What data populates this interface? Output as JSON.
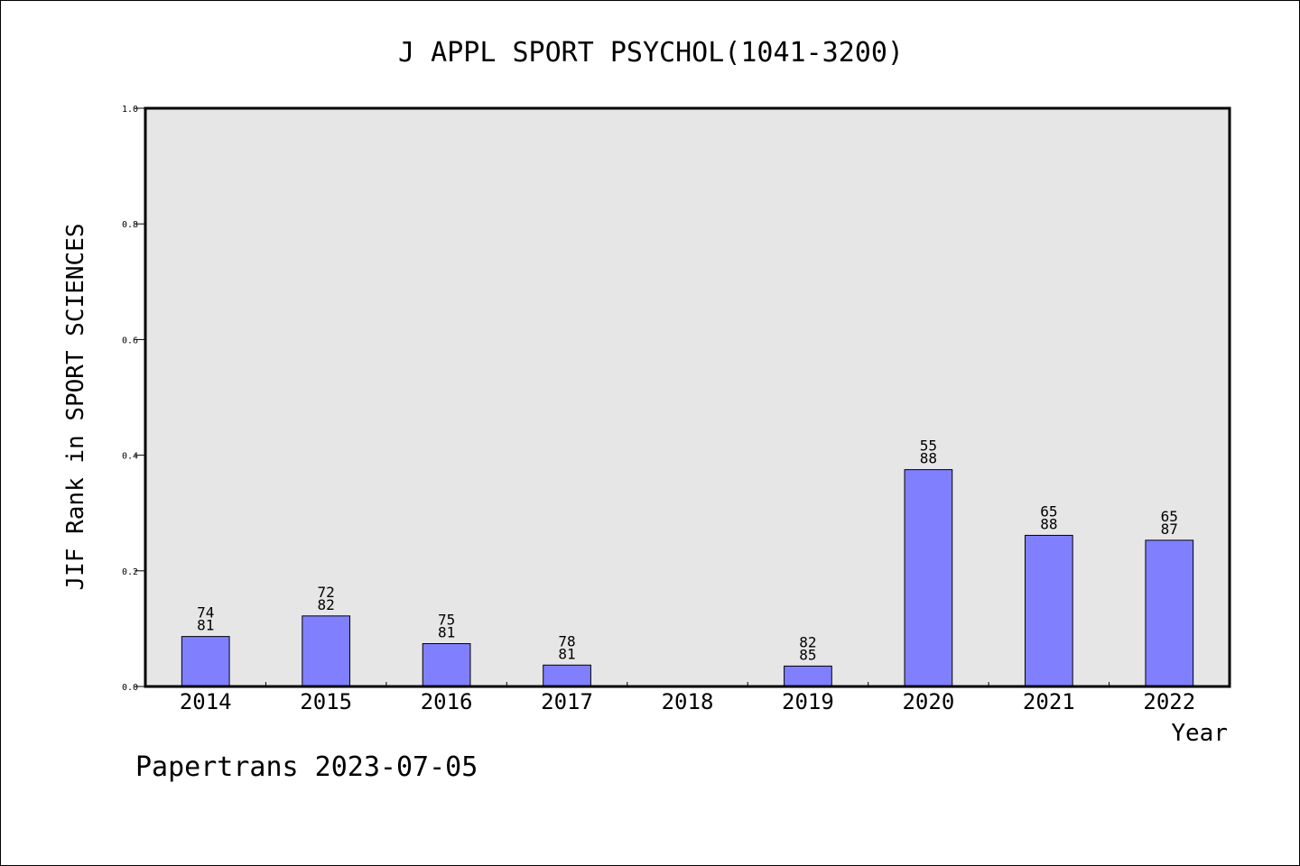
{
  "chart_data": {
    "type": "bar",
    "title": "J APPL SPORT PSYCHOL(1041-3200)",
    "xlabel": "Year",
    "ylabel": "JIF Rank in SPORT SCIENCES",
    "ylim": [
      0,
      1.0
    ],
    "yticks": [
      "0.0",
      "0.2",
      "0.4",
      "0.6",
      "0.8",
      "1.0"
    ],
    "categories": [
      "2014",
      "2015",
      "2016",
      "2017",
      "2018",
      "2019",
      "2020",
      "2021",
      "2022"
    ],
    "values": [
      0.0864,
      0.122,
      0.0741,
      0.037,
      null,
      0.0353,
      0.375,
      0.2614,
      0.2529
    ],
    "ranks": [
      "74",
      "72",
      "75",
      "78",
      "",
      "82",
      "55",
      "65",
      "65"
    ],
    "totals": [
      "81",
      "82",
      "81",
      "81",
      "",
      "85",
      "88",
      "88",
      "87"
    ],
    "grid": false,
    "colors": {
      "bar_fill": "#8080ff",
      "plot_background": "#e6e6e6",
      "axis": "#000000"
    }
  },
  "footer": {
    "note": "Papertrans 2023-07-05"
  }
}
